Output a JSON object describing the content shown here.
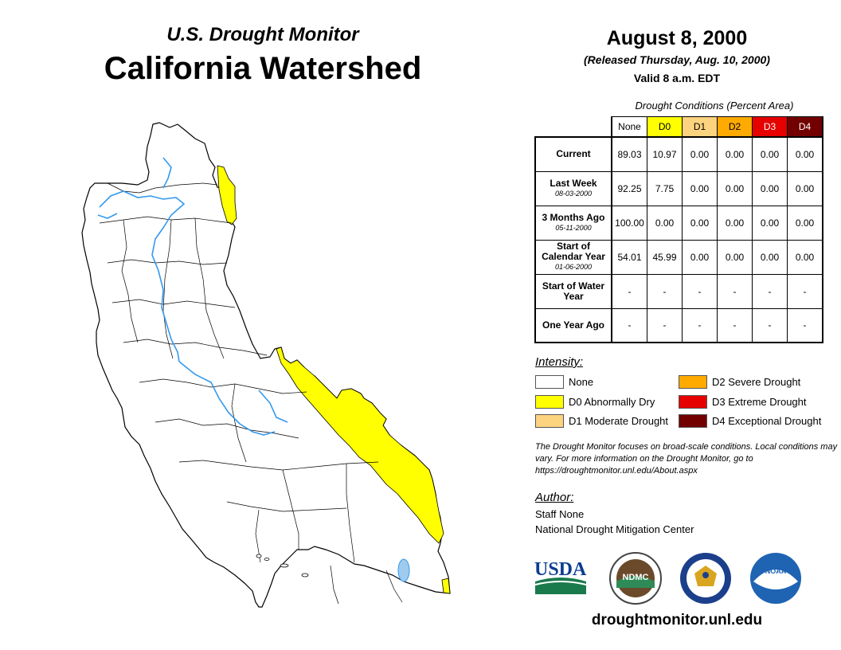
{
  "header": {
    "subtitle": "U.S. Drought Monitor",
    "title": "California Watershed",
    "date": "August 8, 2000",
    "released": "(Released Thursday, Aug. 10, 2000)",
    "valid": "Valid 8 a.m. EDT"
  },
  "table": {
    "caption": "Drought Conditions (Percent Area)",
    "columns": [
      {
        "label": "None",
        "color": "#ffffff",
        "text": "#000000"
      },
      {
        "label": "D0",
        "color": "#ffff00",
        "text": "#000000"
      },
      {
        "label": "D1",
        "color": "#fcd37f",
        "text": "#000000"
      },
      {
        "label": "D2",
        "color": "#ffaa00",
        "text": "#000000"
      },
      {
        "label": "D3",
        "color": "#e60000",
        "text": "#ffffff"
      },
      {
        "label": "D4",
        "color": "#730000",
        "text": "#ffffff"
      }
    ],
    "rows": [
      {
        "label": "Current",
        "sub": "",
        "values": [
          "89.03",
          "10.97",
          "0.00",
          "0.00",
          "0.00",
          "0.00"
        ]
      },
      {
        "label": "Last Week",
        "sub": "08-03-2000",
        "values": [
          "92.25",
          "7.75",
          "0.00",
          "0.00",
          "0.00",
          "0.00"
        ]
      },
      {
        "label": "3 Months Ago",
        "sub": "05-11-2000",
        "values": [
          "100.00",
          "0.00",
          "0.00",
          "0.00",
          "0.00",
          "0.00"
        ]
      },
      {
        "label": "Start of Calendar Year",
        "sub": "01-06-2000",
        "values": [
          "54.01",
          "45.99",
          "0.00",
          "0.00",
          "0.00",
          "0.00"
        ]
      },
      {
        "label": "Start of Water Year",
        "sub": "",
        "values": [
          "-",
          "-",
          "-",
          "-",
          "-",
          "-"
        ]
      },
      {
        "label": "One Year Ago",
        "sub": "",
        "values": [
          "-",
          "-",
          "-",
          "-",
          "-",
          "-"
        ]
      }
    ]
  },
  "legend": {
    "label": "Intensity:",
    "items": [
      {
        "label": "None",
        "color": "#ffffff"
      },
      {
        "label": "D0 Abnormally Dry",
        "color": "#ffff00"
      },
      {
        "label": "D1 Moderate Drought",
        "color": "#fcd37f"
      },
      {
        "label": "D2 Severe Drought",
        "color": "#ffaa00"
      },
      {
        "label": "D3 Extreme Drought",
        "color": "#e60000"
      },
      {
        "label": "D4 Exceptional Drought",
        "color": "#730000"
      }
    ]
  },
  "note": "The Drought Monitor focuses on broad-scale conditions. Local conditions may vary. For more information on the Drought Monitor, go to https://droughtmonitor.unl.edu/About.aspx",
  "author": {
    "label": "Author:",
    "name": "Staff None",
    "org": "National Drought Mitigation Center"
  },
  "logos": {
    "usda": "USDA",
    "ndmc": "NDMC",
    "noaa": "NOAA"
  },
  "website": "droughtmonitor.unl.edu",
  "colors": {
    "river": "#3399ee",
    "boundary": "#000000",
    "d0": "#ffff00"
  }
}
